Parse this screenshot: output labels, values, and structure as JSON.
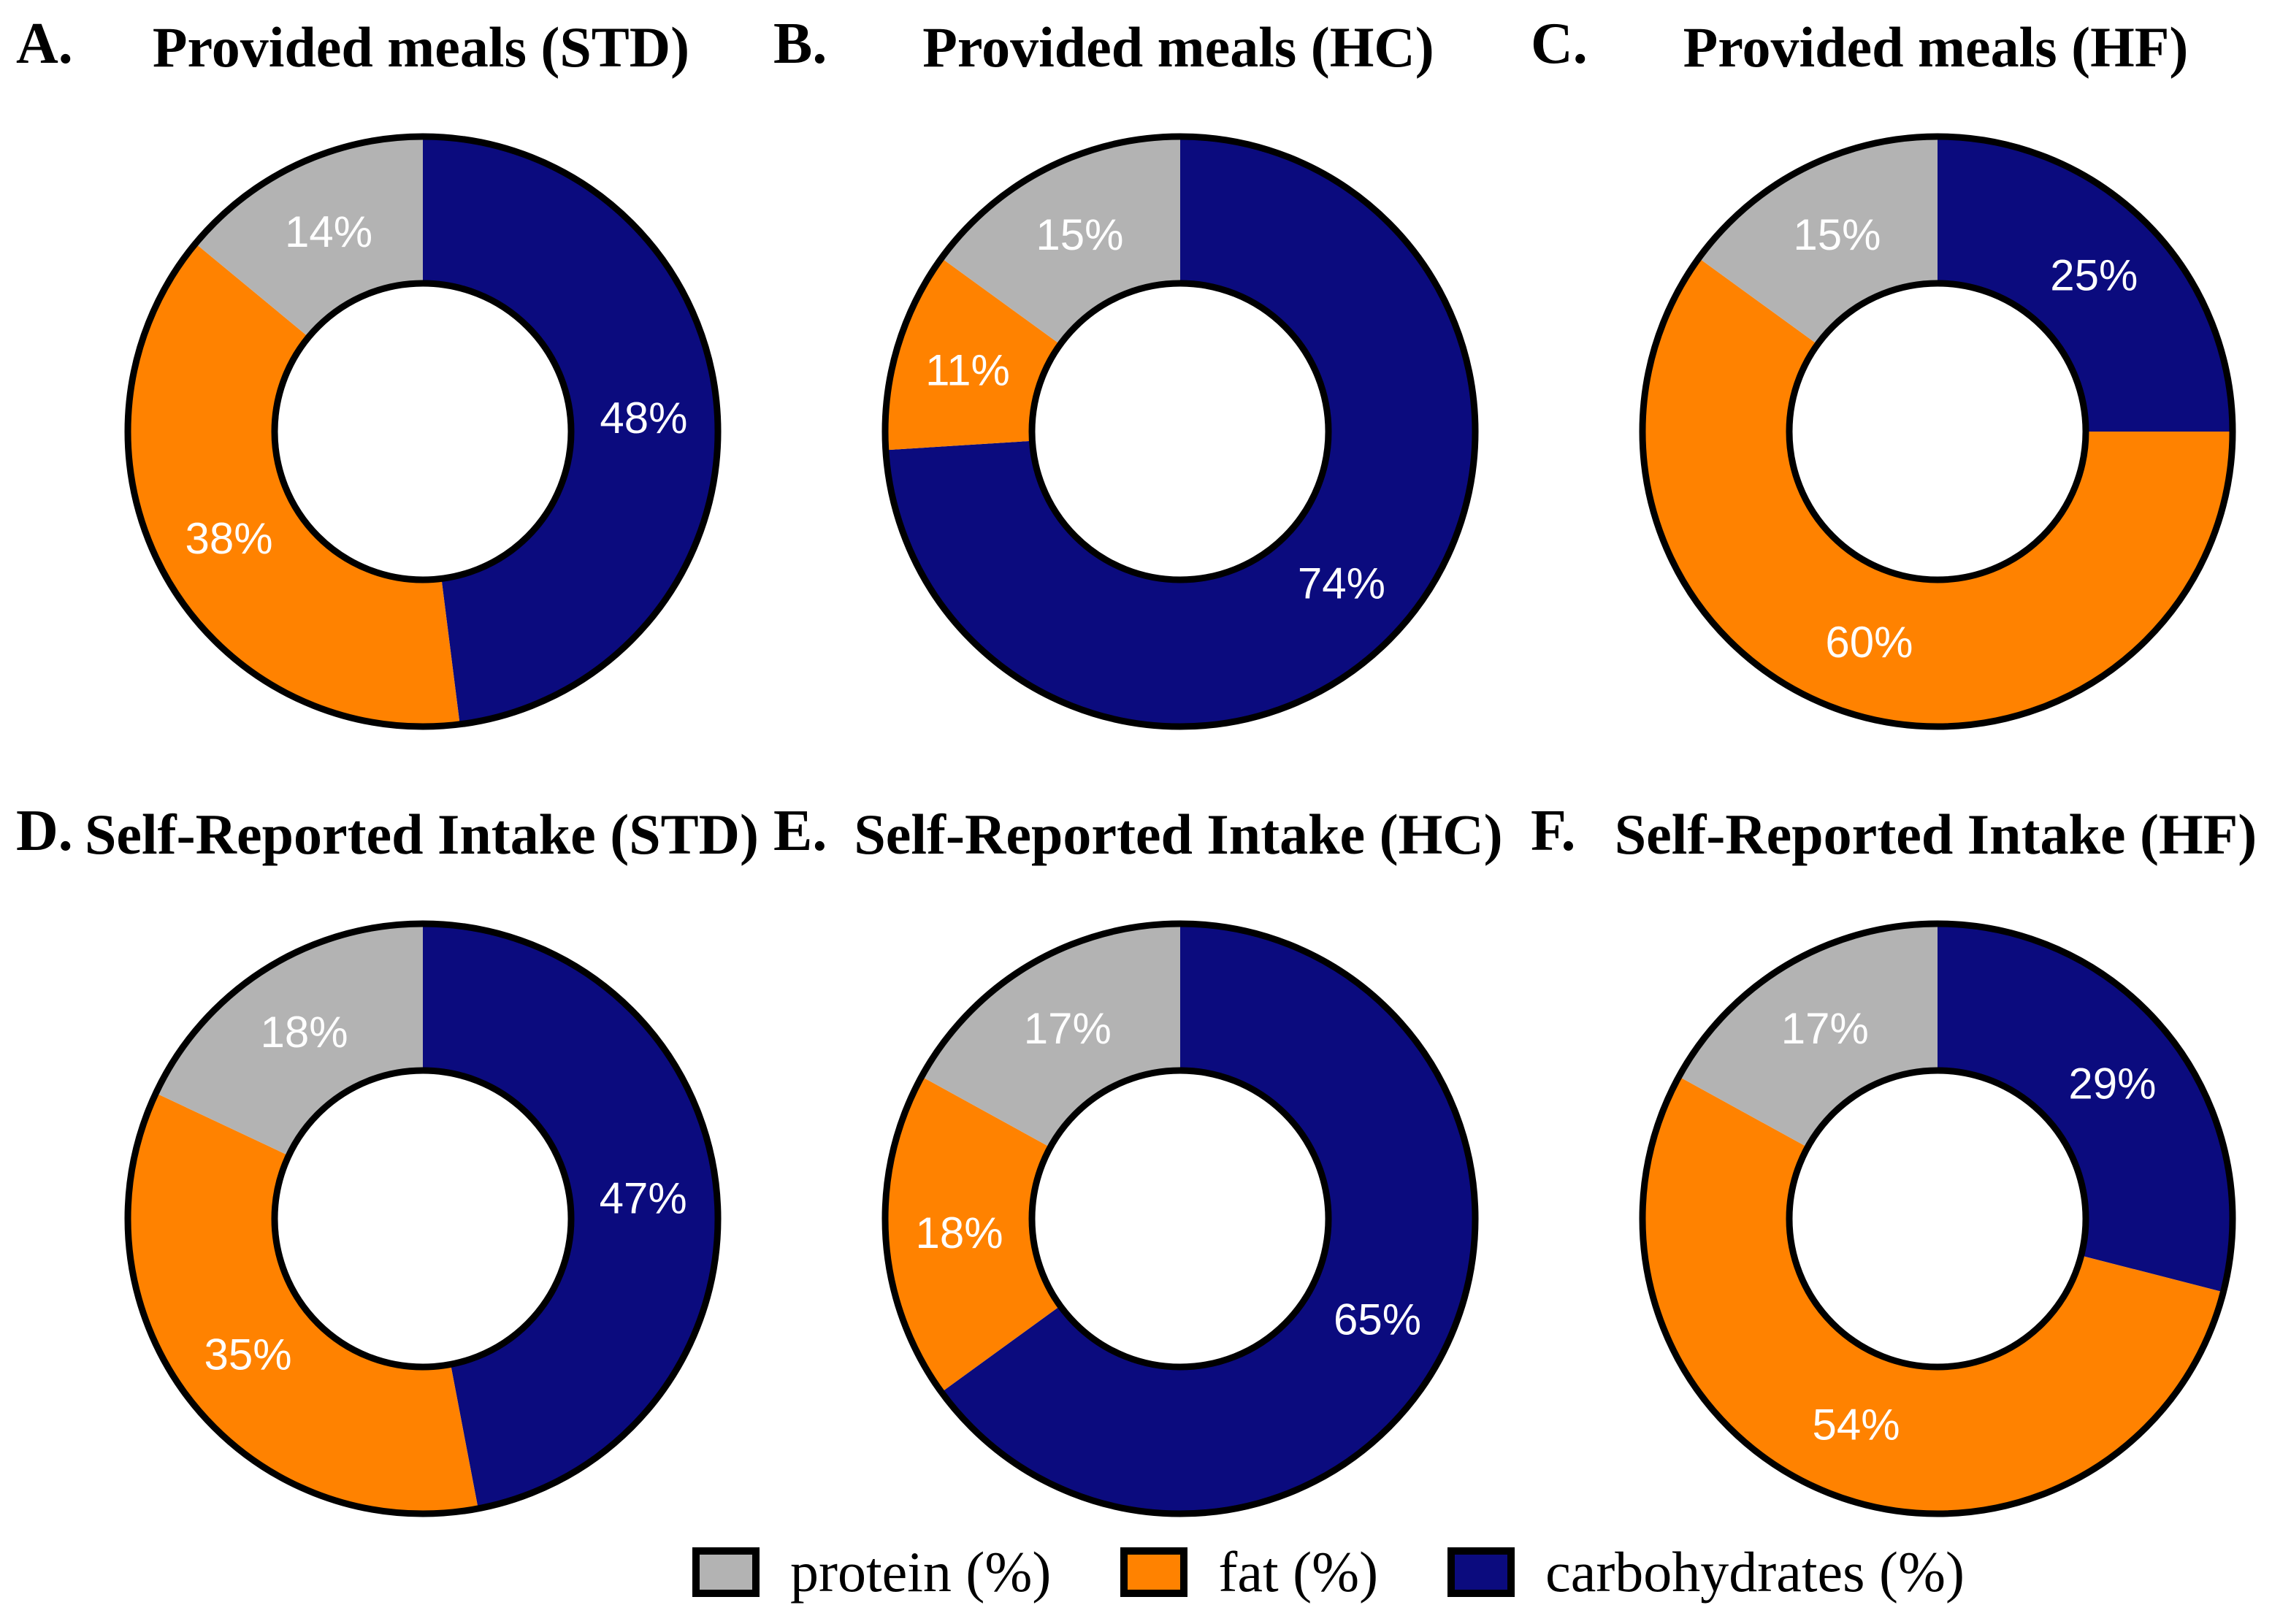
{
  "figure": {
    "background": "#ffffff",
    "rows": [
      "Provided meals",
      "Self-Reported Intake"
    ],
    "label_text_color": "#ffffff"
  },
  "colors": {
    "protein": "#b3b3b3",
    "fat": "#ff8200",
    "carbohydrates": "#0b0b7e",
    "outline": "#000000",
    "hole": "#ffffff"
  },
  "legend": {
    "items": [
      {
        "key": "protein",
        "label": "protein (%)"
      },
      {
        "key": "fat",
        "label": "fat (%)"
      },
      {
        "key": "carbohydrates",
        "label": "carbohydrates (%)"
      }
    ],
    "position": "bottom-center"
  },
  "chart_data": [
    {
      "type": "pie",
      "subtype": "donut",
      "letter": "A.",
      "title": "Provided meals (STD)",
      "start_angle_deg_from_top": 0,
      "direction": "clockwise",
      "hole_ratio": 0.5,
      "slices": [
        {
          "label": "carbohydrates",
          "value": 48,
          "text": "48%"
        },
        {
          "label": "fat",
          "value": 38,
          "text": "38%"
        },
        {
          "label": "protein",
          "value": 14,
          "text": "14%"
        }
      ]
    },
    {
      "type": "pie",
      "subtype": "donut",
      "letter": "B.",
      "title": "Provided meals (HC)",
      "start_angle_deg_from_top": 0,
      "direction": "clockwise",
      "hole_ratio": 0.5,
      "slices": [
        {
          "label": "carbohydrates",
          "value": 74,
          "text": "74%"
        },
        {
          "label": "fat",
          "value": 11,
          "text": "11%"
        },
        {
          "label": "protein",
          "value": 15,
          "text": "15%"
        }
      ]
    },
    {
      "type": "pie",
      "subtype": "donut",
      "letter": "C.",
      "title": "Provided meals (HF)",
      "start_angle_deg_from_top": 0,
      "direction": "clockwise",
      "hole_ratio": 0.5,
      "slices": [
        {
          "label": "carbohydrates",
          "value": 25,
          "text": "25%"
        },
        {
          "label": "fat",
          "value": 60,
          "text": "60%"
        },
        {
          "label": "protein",
          "value": 15,
          "text": "15%"
        }
      ]
    },
    {
      "type": "pie",
      "subtype": "donut",
      "letter": "D.",
      "title": "Self-Reported Intake (STD)",
      "start_angle_deg_from_top": 0,
      "direction": "clockwise",
      "hole_ratio": 0.5,
      "slices": [
        {
          "label": "carbohydrates",
          "value": 47,
          "text": "47%"
        },
        {
          "label": "fat",
          "value": 35,
          "text": "35%"
        },
        {
          "label": "protein",
          "value": 18,
          "text": "18%"
        }
      ]
    },
    {
      "type": "pie",
      "subtype": "donut",
      "letter": "E.",
      "title": "Self-Reported Intake (HC)",
      "start_angle_deg_from_top": 0,
      "direction": "clockwise",
      "hole_ratio": 0.5,
      "slices": [
        {
          "label": "carbohydrates",
          "value": 65,
          "text": "65%"
        },
        {
          "label": "fat",
          "value": 18,
          "text": "18%"
        },
        {
          "label": "protein",
          "value": 17,
          "text": "17%"
        }
      ]
    },
    {
      "type": "pie",
      "subtype": "donut",
      "letter": "F.",
      "title": "Self-Reported Intake (HF)",
      "start_angle_deg_from_top": 0,
      "direction": "clockwise",
      "hole_ratio": 0.5,
      "slices": [
        {
          "label": "carbohydrates",
          "value": 29,
          "text": "29%"
        },
        {
          "label": "fat",
          "value": 54,
          "text": "54%"
        },
        {
          "label": "protein",
          "value": 17,
          "text": "17%"
        }
      ]
    }
  ]
}
